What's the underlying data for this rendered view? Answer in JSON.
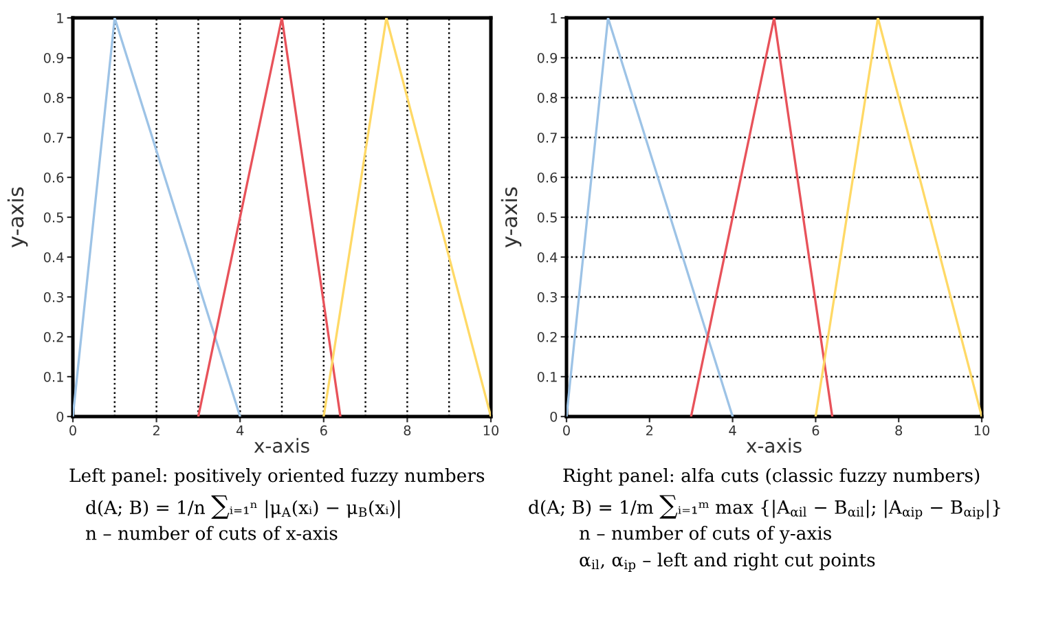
{
  "chart_data": [
    {
      "type": "line",
      "xlabel": "x-axis",
      "ylabel": "y-axis",
      "xlim": [
        0,
        10
      ],
      "ylim": [
        0,
        1
      ],
      "xticks": [
        0,
        2,
        4,
        6,
        8,
        10
      ],
      "yticks": [
        0,
        0.1,
        0.2,
        0.3,
        0.4,
        0.5,
        0.6,
        0.7,
        0.8,
        0.9,
        1
      ],
      "series": [
        {
          "color": "#9dc3e6",
          "x": [
            0,
            1,
            4
          ],
          "values": [
            0,
            1,
            0
          ]
        },
        {
          "color": "#e8525a",
          "x": [
            3,
            5,
            6.4
          ],
          "values": [
            0,
            1,
            0
          ]
        },
        {
          "color": "#ffd966",
          "x": [
            6,
            7.5,
            10
          ],
          "values": [
            0,
            1,
            0
          ]
        }
      ],
      "ref_lines": [
        {
          "axis": "x",
          "value": 1,
          "color": "#000000",
          "line_style": "dotted"
        },
        {
          "axis": "x",
          "value": 2,
          "color": "#000000",
          "line_style": "dotted"
        },
        {
          "axis": "x",
          "value": 3,
          "color": "#000000",
          "line_style": "dotted"
        },
        {
          "axis": "x",
          "value": 4,
          "color": "#000000",
          "line_style": "dotted"
        },
        {
          "axis": "x",
          "value": 5,
          "color": "#000000",
          "line_style": "dotted"
        },
        {
          "axis": "x",
          "value": 6,
          "color": "#000000",
          "line_style": "dotted"
        },
        {
          "axis": "x",
          "value": 7,
          "color": "#000000",
          "line_style": "dotted"
        },
        {
          "axis": "x",
          "value": 8,
          "color": "#000000",
          "line_style": "dotted"
        },
        {
          "axis": "x",
          "value": 9,
          "color": "#000000",
          "line_style": "dotted"
        }
      ],
      "annotations": [
        "Left panel: positively oriented fuzzy numbers",
        "d(A; B) = 1/n ∑ᵢ₌₁ⁿ |μ$_{A}$(xᵢ) − μ$_{B}$(xᵢ)|",
        "n – number of cuts of x-axis"
      ]
    },
    {
      "type": "line",
      "xlabel": "x-axis",
      "ylabel": "y-axis",
      "xlim": [
        0,
        10
      ],
      "ylim": [
        0,
        1
      ],
      "xticks": [
        0,
        2,
        4,
        6,
        8,
        10
      ],
      "yticks": [
        0,
        0.1,
        0.2,
        0.3,
        0.4,
        0.5,
        0.6,
        0.7,
        0.8,
        0.9,
        1
      ],
      "grid": "y",
      "line_style": "solid",
      "series": [
        {
          "color": "#9dc3e6",
          "x": [
            0,
            1,
            4
          ],
          "values": [
            0,
            1,
            0
          ]
        },
        {
          "color": "#e8525a",
          "x": [
            3,
            5,
            6.4
          ],
          "values": [
            0,
            1,
            0
          ]
        },
        {
          "color": "#ffd966",
          "x": [
            6,
            7.5,
            10
          ],
          "values": [
            0,
            1,
            0
          ]
        }
      ],
      "annotations": [
        "Right panel: alfa cuts (classic fuzzy numbers)",
        "d(A; B) = 1/m ∑ᵢ₌₁ᵐ max {|A$_{αil}$ − B$_{αil}$|; |A$_{αip}$ − B$_{αip}$|}",
        "n – number of cuts of y-axis",
        "α$_{il}$, α$_{ip}$ – left and right cut points"
      ]
    }
  ]
}
